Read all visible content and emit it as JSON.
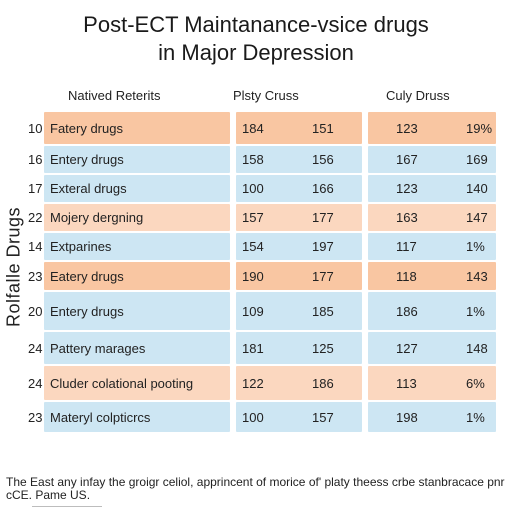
{
  "title": {
    "line1": "Post-ECT Maintanance-vsice drugs",
    "line2": "in Major Depression"
  },
  "vertical_label": "Rolfalle Drugs",
  "headers": [
    "Natived Reterits",
    "Plsty Cruss",
    "Culy Druss"
  ],
  "rows": [
    {
      "index": "10",
      "name": "Fatery drugs",
      "v1": "184",
      "v2": "151",
      "v3": "123",
      "v4": "19%",
      "tone": "orange",
      "height": 32
    },
    {
      "index": "16",
      "name": "Entery drugs",
      "v1": "158",
      "v2": "156",
      "v3": "167",
      "v4": "169",
      "tone": "blue",
      "height": 27
    },
    {
      "index": "17",
      "name": "Exteral drugs",
      "v1": "100",
      "v2": "166",
      "v3": "123",
      "v4": "140",
      "tone": "blue",
      "height": 27
    },
    {
      "index": "22",
      "name": "Mojery dergning",
      "v1": "157",
      "v2": "177",
      "v3": "163",
      "v4": "147",
      "tone": "peach",
      "height": 27
    },
    {
      "index": "14",
      "name": "Extparines",
      "v1": "154",
      "v2": "197",
      "v3": "117",
      "v4": "1%",
      "tone": "blue",
      "height": 27
    },
    {
      "index": "23",
      "name": "Eatery drugs",
      "v1": "190",
      "v2": "177",
      "v3": "118",
      "v4": "143",
      "tone": "orange",
      "height": 28
    },
    {
      "index": "20",
      "name": "Entery drugs",
      "v1": "109",
      "v2": "185",
      "v3": "186",
      "v4": "1%",
      "tone": "blue",
      "height": 38
    },
    {
      "index": "24",
      "name": "Pattery marages",
      "v1": "181",
      "v2": "125",
      "v3": "127",
      "v4": "148",
      "tone": "blue",
      "height": 32
    },
    {
      "index": "24",
      "name": "Cluder colational pooting",
      "v1": "122",
      "v2": "186",
      "v3": "113",
      "v4": "6%",
      "tone": "peach",
      "height": 34
    },
    {
      "index": "23",
      "name": "Materyl colpticrcs",
      "v1": "100",
      "v2": "157",
      "v3": "198",
      "v4": "1%",
      "tone": "blue",
      "height": 30
    }
  ],
  "footnote": "The East any infay the groigr celiol, apprincent of morice of' platy theess crbe stanbracace pnr cCE. Pame US."
}
